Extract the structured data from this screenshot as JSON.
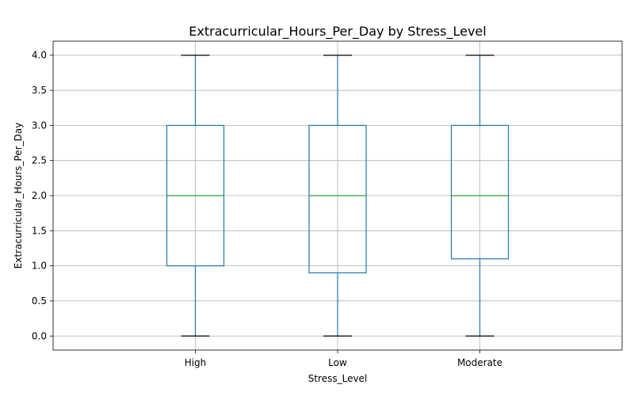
{
  "chart_data": {
    "type": "box",
    "title": "Extracurricular_Hours_Per_Day by Stress_Level",
    "xlabel": "Stress_Level",
    "ylabel": "Extracurricular_Hours_Per_Day",
    "ylim": [
      -0.2,
      4.2
    ],
    "yticks": [
      "0.0",
      "0.5",
      "1.0",
      "1.5",
      "2.0",
      "2.5",
      "3.0",
      "3.5",
      "4.0"
    ],
    "grid": true,
    "categories": [
      "High",
      "Low",
      "Moderate"
    ],
    "boxes": [
      {
        "category": "High",
        "whisker_low": 0.0,
        "q1": 1.0,
        "median": 2.0,
        "q3": 3.0,
        "whisker_high": 4.0
      },
      {
        "category": "Low",
        "whisker_low": 0.0,
        "q1": 0.9,
        "median": 2.0,
        "q3": 3.0,
        "whisker_high": 4.0
      },
      {
        "category": "Moderate",
        "whisker_low": 0.0,
        "q1": 1.1,
        "median": 2.0,
        "q3": 3.0,
        "whisker_high": 4.0
      }
    ],
    "colors": {
      "box": "#1f77b4",
      "median": "#2ca02c",
      "cap": "#000000",
      "grid": "#b0b0b0"
    }
  }
}
